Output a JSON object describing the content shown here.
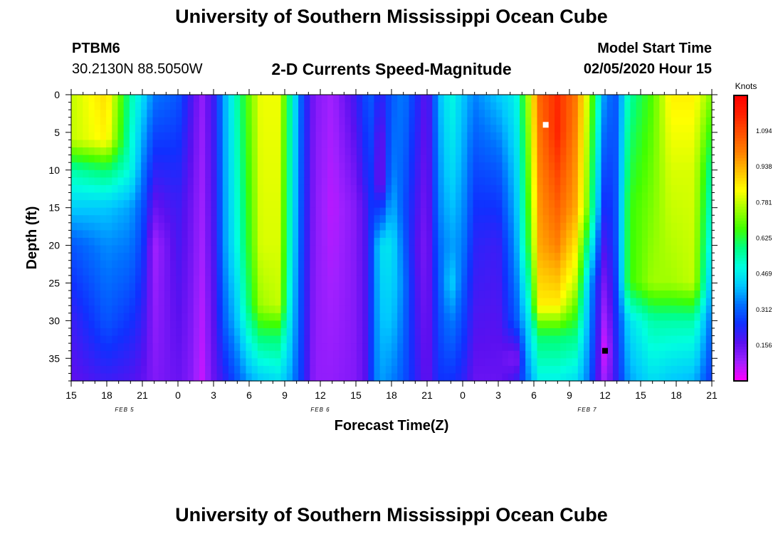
{
  "header": {
    "title": "University of Southern Mississippi Ocean Cube",
    "station_id": "PTBM6",
    "coords": "30.2130N 88.5050W",
    "subtitle": "2-D Currents Speed-Magnitude",
    "start_label": "Model Start Time",
    "start_value": "02/05/2020 Hour 15"
  },
  "footer": {
    "title": "University of Southern Mississippi Ocean Cube"
  },
  "chart_data": {
    "type": "heatmap",
    "xlabel": "Forecast Time(Z)",
    "ylabel": "Depth (ft)",
    "x_ticks": [
      "15",
      "18",
      "21",
      "0",
      "3",
      "6",
      "9",
      "12",
      "15",
      "18",
      "21",
      "0",
      "3",
      "6",
      "9",
      "12",
      "15",
      "18",
      "21"
    ],
    "x_forecast_hours": [
      0,
      3,
      6,
      9,
      12,
      15,
      18,
      21,
      24,
      27,
      30,
      33,
      36,
      39,
      42,
      45,
      48,
      51,
      54
    ],
    "date_labels": [
      {
        "text": "FEB 5",
        "forecast_hour": 4.5
      },
      {
        "text": "FEB 6",
        "forecast_hour": 21
      },
      {
        "text": "FEB 7",
        "forecast_hour": 43.5
      }
    ],
    "y_ticks": [
      0,
      5,
      10,
      15,
      20,
      25,
      30,
      35
    ],
    "ylim": [
      38,
      0
    ],
    "colorbar": {
      "title": "Knots",
      "ticks": [
        "0.156",
        "0.312",
        "0.469",
        "0.625",
        "0.781",
        "0.938",
        "1.094"
      ],
      "range": [
        0,
        1.25
      ],
      "colors": [
        "#ff00ff",
        "#a020ff",
        "#5a10f0",
        "#1030ff",
        "#0070ff",
        "#00c8ff",
        "#00ffe0",
        "#00ff80",
        "#40ff00",
        "#a0ff00",
        "#ffff00",
        "#ffc000",
        "#ff8000",
        "#ff5000",
        "#ff2000",
        "#ff0000"
      ]
    },
    "markers": [
      {
        "forecast_hour": 40,
        "depth": 4,
        "color": "#ffffff",
        "meaning": "max"
      },
      {
        "forecast_hour": 45,
        "depth": 34,
        "color": "#000000",
        "meaning": "min"
      }
    ],
    "columns": [
      {
        "forecast_hour": 0,
        "profile": [
          [
            0,
            0.78
          ],
          [
            6,
            0.78
          ],
          [
            10,
            0.55
          ],
          [
            20,
            0.3
          ],
          [
            30,
            0.2
          ],
          [
            38,
            0.16
          ]
        ]
      },
      {
        "forecast_hour": 3,
        "profile": [
          [
            0,
            0.88
          ],
          [
            6,
            0.85
          ],
          [
            10,
            0.6
          ],
          [
            15,
            0.42
          ],
          [
            20,
            0.36
          ],
          [
            30,
            0.3
          ],
          [
            38,
            0.2
          ]
        ]
      },
      {
        "forecast_hour": 5,
        "profile": [
          [
            0,
            0.55
          ],
          [
            10,
            0.5
          ],
          [
            15,
            0.38
          ],
          [
            25,
            0.3
          ],
          [
            38,
            0.18
          ]
        ]
      },
      {
        "forecast_hour": 6,
        "profile": [
          [
            0,
            0.45
          ],
          [
            15,
            0.3
          ],
          [
            38,
            0.16
          ]
        ]
      },
      {
        "forecast_hour": 7,
        "profile": [
          [
            0,
            0.34
          ],
          [
            10,
            0.22
          ],
          [
            20,
            0.08
          ],
          [
            38,
            0.12
          ]
        ]
      },
      {
        "forecast_hour": 9,
        "profile": [
          [
            0,
            0.3
          ],
          [
            15,
            0.2
          ],
          [
            38,
            0.15
          ]
        ]
      },
      {
        "forecast_hour": 10,
        "profile": [
          [
            0,
            0.2
          ],
          [
            15,
            0.15
          ],
          [
            38,
            0.12
          ]
        ]
      },
      {
        "forecast_hour": 11,
        "profile": [
          [
            0,
            0.1
          ],
          [
            20,
            0.08
          ],
          [
            38,
            0.05
          ]
        ]
      },
      {
        "forecast_hour": 12,
        "profile": [
          [
            0,
            0.2
          ],
          [
            20,
            0.18
          ],
          [
            38,
            0.15
          ]
        ]
      },
      {
        "forecast_hour": 13,
        "profile": [
          [
            0,
            0.4
          ],
          [
            20,
            0.38
          ],
          [
            30,
            0.32
          ],
          [
            38,
            0.22
          ]
        ]
      },
      {
        "forecast_hour": 14,
        "profile": [
          [
            0,
            0.55
          ],
          [
            20,
            0.5
          ],
          [
            30,
            0.42
          ],
          [
            38,
            0.3
          ]
        ]
      },
      {
        "forecast_hour": 15,
        "profile": [
          [
            0,
            0.7
          ],
          [
            20,
            0.65
          ],
          [
            28,
            0.6
          ],
          [
            38,
            0.38
          ]
        ]
      },
      {
        "forecast_hour": 16,
        "profile": [
          [
            0,
            0.82
          ],
          [
            20,
            0.8
          ],
          [
            28,
            0.75
          ],
          [
            32,
            0.6
          ],
          [
            38,
            0.42
          ]
        ]
      },
      {
        "forecast_hour": 17.5,
        "profile": [
          [
            0,
            0.82
          ],
          [
            20,
            0.8
          ],
          [
            28,
            0.78
          ],
          [
            32,
            0.6
          ],
          [
            38,
            0.45
          ]
        ]
      },
      {
        "forecast_hour": 18.5,
        "profile": [
          [
            0,
            0.55
          ],
          [
            20,
            0.5
          ],
          [
            30,
            0.45
          ],
          [
            38,
            0.38
          ]
        ]
      },
      {
        "forecast_hour": 19.5,
        "profile": [
          [
            0,
            0.28
          ],
          [
            38,
            0.25
          ]
        ]
      },
      {
        "forecast_hour": 20.5,
        "profile": [
          [
            0,
            0.12
          ],
          [
            38,
            0.1
          ]
        ]
      },
      {
        "forecast_hour": 22,
        "profile": [
          [
            0,
            0.08
          ],
          [
            15,
            0.06
          ],
          [
            38,
            0.1
          ]
        ]
      },
      {
        "forecast_hour": 24,
        "profile": [
          [
            0,
            0.2
          ],
          [
            15,
            0.12
          ],
          [
            38,
            0.12
          ]
        ]
      },
      {
        "forecast_hour": 25,
        "profile": [
          [
            0,
            0.3
          ],
          [
            10,
            0.25
          ],
          [
            15,
            0.2
          ],
          [
            38,
            0.18
          ]
        ]
      },
      {
        "forecast_hour": 25.5,
        "profile": [
          [
            0,
            0.3
          ],
          [
            10,
            0.26
          ],
          [
            20,
            0.32
          ],
          [
            38,
            0.32
          ]
        ]
      },
      {
        "forecast_hour": 26,
        "profile": [
          [
            0,
            0.2
          ],
          [
            6,
            0.12
          ],
          [
            12,
            0.1
          ],
          [
            20,
            0.45
          ],
          [
            38,
            0.38
          ]
        ]
      },
      {
        "forecast_hour": 27,
        "profile": [
          [
            0,
            0.3
          ],
          [
            10,
            0.35
          ],
          [
            20,
            0.46
          ],
          [
            30,
            0.42
          ],
          [
            38,
            0.35
          ]
        ]
      },
      {
        "forecast_hour": 28,
        "profile": [
          [
            0,
            0.35
          ],
          [
            15,
            0.3
          ],
          [
            25,
            0.35
          ],
          [
            38,
            0.3
          ]
        ]
      },
      {
        "forecast_hour": 29,
        "profile": [
          [
            0,
            0.25
          ],
          [
            20,
            0.18
          ],
          [
            38,
            0.22
          ]
        ]
      },
      {
        "forecast_hour": 30,
        "profile": [
          [
            0,
            0.15
          ],
          [
            20,
            0.12
          ],
          [
            38,
            0.15
          ]
        ]
      },
      {
        "forecast_hour": 31,
        "profile": [
          [
            0,
            0.4
          ],
          [
            15,
            0.35
          ],
          [
            25,
            0.3
          ],
          [
            38,
            0.25
          ]
        ]
      },
      {
        "forecast_hour": 32,
        "profile": [
          [
            0,
            0.5
          ],
          [
            10,
            0.45
          ],
          [
            20,
            0.38
          ],
          [
            25,
            0.44
          ],
          [
            30,
            0.35
          ],
          [
            38,
            0.25
          ]
        ]
      },
      {
        "forecast_hour": 33,
        "profile": [
          [
            0,
            0.42
          ],
          [
            20,
            0.35
          ],
          [
            30,
            0.28
          ],
          [
            38,
            0.22
          ]
        ]
      },
      {
        "forecast_hour": 34,
        "profile": [
          [
            0,
            0.35
          ],
          [
            10,
            0.28
          ],
          [
            20,
            0.22
          ],
          [
            38,
            0.15
          ]
        ]
      },
      {
        "forecast_hour": 36,
        "profile": [
          [
            0,
            0.42
          ],
          [
            10,
            0.3
          ],
          [
            20,
            0.2
          ],
          [
            38,
            0.15
          ]
        ]
      },
      {
        "forecast_hour": 37.5,
        "profile": [
          [
            0,
            0.48
          ],
          [
            20,
            0.38
          ],
          [
            30,
            0.3
          ],
          [
            35,
            0.12
          ],
          [
            38,
            0.2
          ]
        ]
      },
      {
        "forecast_hour": 38.5,
        "profile": [
          [
            0,
            0.75
          ],
          [
            20,
            0.62
          ],
          [
            30,
            0.45
          ],
          [
            38,
            0.35
          ]
        ]
      },
      {
        "forecast_hour": 39.5,
        "profile": [
          [
            0,
            1.05
          ],
          [
            20,
            0.95
          ],
          [
            28,
            0.85
          ],
          [
            32,
            0.6
          ],
          [
            38,
            0.48
          ]
        ]
      },
      {
        "forecast_hour": 41,
        "profile": [
          [
            0,
            1.15
          ],
          [
            5,
            1.16
          ],
          [
            20,
            1.0
          ],
          [
            28,
            0.85
          ],
          [
            32,
            0.6
          ],
          [
            38,
            0.48
          ]
        ]
      },
      {
        "forecast_hour": 42.5,
        "profile": [
          [
            0,
            1.02
          ],
          [
            15,
            0.95
          ],
          [
            25,
            0.78
          ],
          [
            32,
            0.58
          ],
          [
            38,
            0.45
          ]
        ]
      },
      {
        "forecast_hour": 43.5,
        "profile": [
          [
            0,
            0.8
          ],
          [
            15,
            0.72
          ],
          [
            25,
            0.45
          ],
          [
            38,
            0.35
          ]
        ]
      },
      {
        "forecast_hour": 44.5,
        "profile": [
          [
            0,
            0.5
          ],
          [
            15,
            0.38
          ],
          [
            25,
            0.2
          ],
          [
            38,
            0.15
          ]
        ]
      },
      {
        "forecast_hour": 45,
        "profile": [
          [
            0,
            0.35
          ],
          [
            15,
            0.22
          ],
          [
            25,
            0.12
          ],
          [
            34,
            0.02
          ],
          [
            38,
            0.08
          ]
        ]
      },
      {
        "forecast_hour": 46,
        "profile": [
          [
            0,
            0.3
          ],
          [
            20,
            0.3
          ],
          [
            38,
            0.22
          ]
        ]
      },
      {
        "forecast_hour": 47,
        "profile": [
          [
            0,
            0.55
          ],
          [
            15,
            0.65
          ],
          [
            25,
            0.65
          ],
          [
            30,
            0.45
          ],
          [
            38,
            0.38
          ]
        ]
      },
      {
        "forecast_hour": 49,
        "profile": [
          [
            0,
            0.68
          ],
          [
            15,
            0.72
          ],
          [
            25,
            0.75
          ],
          [
            30,
            0.55
          ],
          [
            38,
            0.45
          ]
        ]
      },
      {
        "forecast_hour": 50.5,
        "profile": [
          [
            0,
            0.85
          ],
          [
            10,
            0.8
          ],
          [
            25,
            0.75
          ],
          [
            30,
            0.55
          ],
          [
            38,
            0.42
          ]
        ]
      },
      {
        "forecast_hour": 52.5,
        "profile": [
          [
            0,
            0.85
          ],
          [
            10,
            0.8
          ],
          [
            25,
            0.78
          ],
          [
            30,
            0.55
          ],
          [
            38,
            0.4
          ]
        ]
      },
      {
        "forecast_hour": 54,
        "profile": [
          [
            0,
            0.72
          ],
          [
            10,
            0.55
          ],
          [
            20,
            0.45
          ],
          [
            30,
            0.32
          ],
          [
            38,
            0.25
          ]
        ]
      }
    ]
  }
}
